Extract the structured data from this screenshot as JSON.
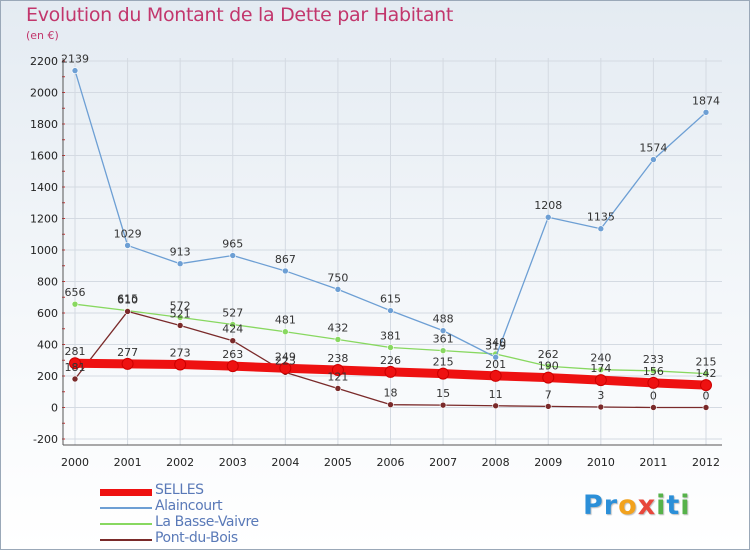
{
  "title": "Evolution du Montant de la Dette par Habitant",
  "subtitle": "(en €)",
  "logo": {
    "letters": [
      {
        "ch": "P",
        "color": "#2b8fd8"
      },
      {
        "ch": "r",
        "color": "#2b8fd8"
      },
      {
        "ch": "o",
        "color": "#f2a21d"
      },
      {
        "ch": "x",
        "color": "#e8473b"
      },
      {
        "ch": "i",
        "color": "#56b24a"
      },
      {
        "ch": "t",
        "color": "#2b8fd8"
      },
      {
        "ch": "i",
        "color": "#56b24a"
      }
    ]
  },
  "chart_data": {
    "type": "line",
    "title": "Evolution du Montant de la Dette par Habitant",
    "subtitle": "(en €)",
    "ylim": [
      -200,
      2200
    ],
    "yticks": [
      -200,
      0,
      200,
      400,
      600,
      800,
      1000,
      1200,
      1400,
      1600,
      1800,
      2000,
      2200
    ],
    "x": [
      "2000",
      "2001",
      "2002",
      "2003",
      "2004",
      "2005",
      "2006",
      "2007",
      "2008",
      "2009",
      "2010",
      "2011",
      "2012"
    ],
    "legend_position": "bottom-left",
    "series": [
      {
        "name": "SELLES",
        "color": "#ee1111",
        "values": [
          281,
          277,
          273,
          263,
          249,
          238,
          226,
          215,
          201,
          190,
          174,
          156,
          142
        ]
      },
      {
        "name": "Alaincourt",
        "color": "#6d9fd4",
        "values": [
          2139,
          1029,
          913,
          965,
          867,
          750,
          615,
          488,
          319,
          1208,
          1135,
          1574,
          1874
        ]
      },
      {
        "name": "La Basse-Vaivre",
        "color": "#88d860",
        "values": [
          656,
          615,
          572,
          527,
          481,
          432,
          381,
          361,
          340,
          262,
          240,
          233,
          215
        ]
      },
      {
        "name": "Pont-du-Bois",
        "color": "#7a2a2a",
        "values": [
          181,
          610,
          521,
          424,
          223,
          121,
          18,
          15,
          11,
          7,
          3,
          0,
          0
        ]
      }
    ]
  }
}
